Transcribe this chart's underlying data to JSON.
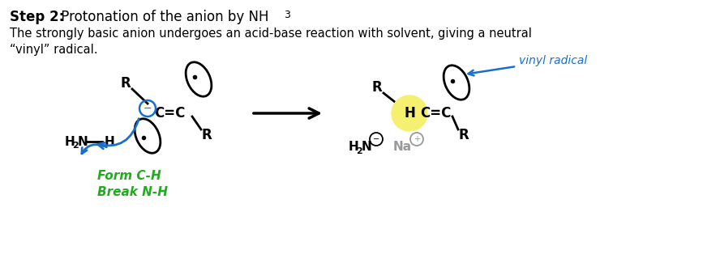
{
  "bg_color": "#ffffff",
  "text_color": "#000000",
  "blue_color": "#1a6fcc",
  "green_color": "#22aa22",
  "gray_color": "#999999",
  "highlight_yellow": "#f5f070",
  "title_bold": "Step 2:",
  "title_rest": " Protonation of the anion by NH",
  "title_sub3": "3",
  "desc1": "The strongly basic anion undergoes an acid-base reaction with solvent, giving a neutral",
  "desc2": "“vinyl” radical.",
  "vinyl_radical_label": "vinyl radical",
  "form_break": "Form C-H\nBreak N-H"
}
